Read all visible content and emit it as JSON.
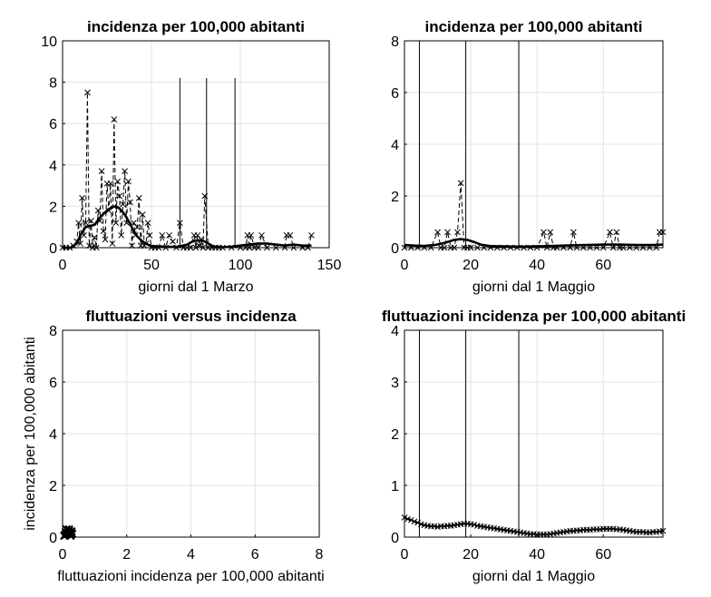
{
  "chart_data": [
    {
      "type": "line",
      "title": "incidenza per 100,000 abitanti",
      "xlabel": "giorni dal 1 Marzo",
      "ylabel": "",
      "xlim": [
        0,
        150
      ],
      "ylim": [
        0,
        10
      ],
      "xticks": [
        "0",
        "50",
        "100",
        "150"
      ],
      "yticks": [
        "0",
        "2",
        "4",
        "6",
        "8",
        "10"
      ],
      "grid": true,
      "vlines": [
        66,
        81,
        97
      ],
      "vline_top": 8.2,
      "series": [
        {
          "style": "dashed-markers",
          "x": [
            0,
            2,
            4,
            6,
            8,
            9,
            10,
            11,
            12,
            13,
            14,
            15,
            16,
            17,
            18,
            19,
            20,
            21,
            22,
            23,
            24,
            25,
            26,
            27,
            28,
            29,
            30,
            31,
            32,
            33,
            34,
            35,
            36,
            37,
            38,
            39,
            40,
            41,
            42,
            43,
            44,
            45,
            46,
            47,
            48,
            49,
            50,
            52,
            54,
            56,
            58,
            60,
            62,
            64,
            66,
            68,
            70,
            72,
            74,
            75,
            76,
            77,
            78,
            79,
            80,
            82,
            84,
            86,
            88,
            90,
            95,
            100,
            103,
            104,
            105,
            106,
            108,
            110,
            112,
            115,
            120,
            125,
            126,
            128,
            130,
            135,
            138,
            140
          ],
          "y": [
            0,
            0,
            0,
            0.1,
            0.3,
            1.2,
            0.2,
            2.4,
            0.6,
            1.2,
            7.5,
            0.1,
            1.3,
            0,
            0.5,
            0,
            1.8,
            1.3,
            3.7,
            0.8,
            0.4,
            3.1,
            1.8,
            3.1,
            0.2,
            6.2,
            1.2,
            3.2,
            2.5,
            0.6,
            2.1,
            3.7,
            1.2,
            3.2,
            2.2,
            0.1,
            1.2,
            0.6,
            1.0,
            2.4,
            0.1,
            1.6,
            0.1,
            0.2,
            1.2,
            0.6,
            0,
            0,
            0,
            0.6,
            0,
            0.6,
            0.3,
            0,
            1.2,
            0,
            0,
            0,
            0.6,
            0,
            0.6,
            0.1,
            0.4,
            0,
            2.5,
            0,
            0,
            0,
            0,
            0,
            0,
            0,
            0,
            0.6,
            0,
            0.6,
            0,
            0,
            0.6,
            0,
            0,
            0,
            0.6,
            0.6,
            0,
            0,
            0,
            0.6
          ]
        },
        {
          "style": "solid-thick",
          "x": [
            0,
            5,
            8,
            10,
            13,
            15,
            18,
            20,
            22,
            25,
            28,
            30,
            32,
            35,
            38,
            40,
            42,
            45,
            48,
            50,
            55,
            60,
            65,
            70,
            73,
            75,
            78,
            80,
            83,
            85,
            90,
            95,
            100,
            105,
            110,
            115,
            120,
            125,
            130,
            135,
            140
          ],
          "y": [
            0,
            0,
            0.2,
            0.6,
            1.0,
            1.05,
            1.1,
            1.35,
            1.55,
            1.8,
            1.97,
            2.0,
            1.9,
            1.6,
            1.15,
            0.8,
            0.55,
            0.3,
            0.15,
            0.08,
            0.05,
            0.04,
            0.05,
            0.15,
            0.3,
            0.35,
            0.35,
            0.3,
            0.15,
            0.05,
            0.02,
            0.05,
            0.1,
            0.15,
            0.2,
            0.2,
            0.15,
            0.1,
            0.15,
            0.1,
            0.1
          ]
        }
      ]
    },
    {
      "type": "line",
      "title": "incidenza per 100,000 abitanti",
      "xlabel": "giorni dal 1 Maggio",
      "ylabel": "",
      "xlim": [
        0,
        78
      ],
      "ylim": [
        0,
        8
      ],
      "xticks": [
        "0",
        "20",
        "40",
        "60"
      ],
      "yticks": [
        "0",
        "2",
        "4",
        "6",
        "8"
      ],
      "grid": true,
      "vlines": [
        4.5,
        18.5,
        34.5
      ],
      "vline_top": 8,
      "series": [
        {
          "style": "dashed-markers",
          "x": [
            0,
            2,
            4,
            6,
            8,
            10,
            11,
            12,
            13,
            14,
            15,
            16,
            17,
            18,
            19,
            20,
            22,
            24,
            26,
            28,
            30,
            32,
            34,
            36,
            38,
            40,
            42,
            43,
            44,
            45,
            46,
            48,
            50,
            51,
            52,
            54,
            56,
            58,
            60,
            62,
            63,
            64,
            65,
            66,
            68,
            70,
            72,
            74,
            76,
            77,
            78
          ],
          "y": [
            0,
            0,
            0,
            0,
            0,
            0.6,
            0,
            0,
            0.6,
            0,
            0,
            0.6,
            2.5,
            0,
            0,
            0,
            0,
            0,
            0,
            0,
            0,
            0,
            0,
            0,
            0,
            0,
            0.6,
            0,
            0.6,
            0,
            0,
            0,
            0,
            0.6,
            0,
            0,
            0,
            0,
            0,
            0.6,
            0,
            0.6,
            0,
            0,
            0,
            0,
            0,
            0,
            0,
            0.6,
            0.6
          ]
        },
        {
          "style": "solid-thick",
          "x": [
            0,
            3,
            6,
            9,
            12,
            15,
            17,
            19,
            21,
            23,
            26,
            30,
            35,
            40,
            45,
            50,
            55,
            60,
            65,
            70,
            75,
            78
          ],
          "y": [
            0.1,
            0.08,
            0.07,
            0.1,
            0.18,
            0.3,
            0.33,
            0.3,
            0.22,
            0.12,
            0.06,
            0.05,
            0.04,
            0.05,
            0.07,
            0.09,
            0.1,
            0.12,
            0.12,
            0.1,
            0.1,
            0.12
          ]
        }
      ]
    },
    {
      "type": "scatter",
      "title": "fluttuazioni versus incidenza",
      "xlabel": "fluttuazioni incidenza per 100,000 abitanti",
      "ylabel": "incidenza per 100,000 abitanti",
      "xlim": [
        0,
        8
      ],
      "ylim": [
        0,
        8
      ],
      "xticks": [
        "0",
        "2",
        "4",
        "6",
        "8"
      ],
      "yticks": [
        "0",
        "2",
        "4",
        "6",
        "8"
      ],
      "grid": true,
      "series": [
        {
          "style": "markers",
          "x": [
            0.05,
            0.08,
            0.1,
            0.12,
            0.15,
            0.18,
            0.2,
            0.22,
            0.25,
            0.28,
            0.3,
            0.12,
            0.2,
            0.25,
            0.1,
            0.28
          ],
          "y": [
            0.05,
            0.1,
            0.08,
            0.15,
            0.12,
            0.2,
            0.25,
            0.18,
            0.1,
            0.22,
            0.12,
            0.3,
            0.3,
            0.05,
            0.2,
            0.15
          ]
        }
      ]
    },
    {
      "type": "line",
      "title": "fluttuazioni incidenza per 100,000 abitanti",
      "xlabel": "giorni dal 1 Maggio",
      "ylabel": "",
      "xlim": [
        0,
        78
      ],
      "ylim": [
        0,
        4
      ],
      "xticks": [
        "0",
        "20",
        "40",
        "60"
      ],
      "yticks": [
        "0",
        "1",
        "2",
        "3",
        "4"
      ],
      "grid": true,
      "vlines": [
        4.5,
        18.5,
        34.5
      ],
      "vline_top": 4,
      "series": [
        {
          "style": "solid-markers",
          "x": [
            0,
            1,
            2,
            3,
            4,
            5,
            6,
            7,
            8,
            9,
            10,
            11,
            12,
            13,
            14,
            15,
            16,
            17,
            18,
            19,
            20,
            21,
            22,
            23,
            24,
            25,
            26,
            27,
            28,
            29,
            30,
            31,
            32,
            33,
            34,
            35,
            36,
            37,
            38,
            39,
            40,
            41,
            42,
            43,
            44,
            45,
            46,
            47,
            48,
            49,
            50,
            51,
            52,
            53,
            54,
            55,
            56,
            57,
            58,
            59,
            60,
            61,
            62,
            63,
            64,
            65,
            66,
            67,
            68,
            69,
            70,
            71,
            72,
            73,
            74,
            75,
            76,
            77,
            78
          ],
          "y": [
            0.38,
            0.35,
            0.33,
            0.3,
            0.28,
            0.25,
            0.23,
            0.22,
            0.21,
            0.21,
            0.2,
            0.21,
            0.21,
            0.22,
            0.22,
            0.23,
            0.24,
            0.25,
            0.26,
            0.26,
            0.25,
            0.24,
            0.22,
            0.21,
            0.2,
            0.19,
            0.18,
            0.17,
            0.16,
            0.15,
            0.14,
            0.13,
            0.12,
            0.11,
            0.1,
            0.09,
            0.08,
            0.07,
            0.06,
            0.06,
            0.05,
            0.05,
            0.05,
            0.05,
            0.06,
            0.07,
            0.08,
            0.09,
            0.1,
            0.11,
            0.12,
            0.12,
            0.13,
            0.13,
            0.14,
            0.14,
            0.14,
            0.15,
            0.15,
            0.15,
            0.16,
            0.16,
            0.16,
            0.16,
            0.15,
            0.15,
            0.14,
            0.13,
            0.12,
            0.11,
            0.1,
            0.1,
            0.1,
            0.09,
            0.09,
            0.1,
            0.1,
            0.11,
            0.12
          ]
        }
      ]
    }
  ]
}
